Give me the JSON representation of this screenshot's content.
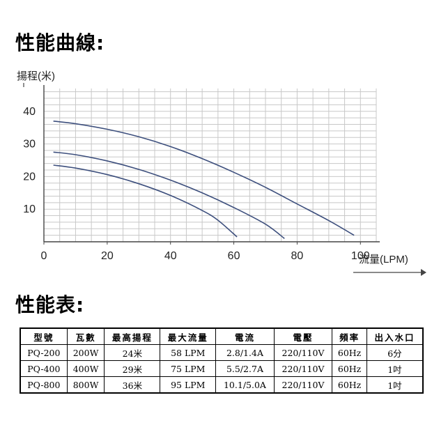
{
  "headings": {
    "curve": "性能曲線:",
    "table": "性能表:"
  },
  "chart_data": {
    "type": "line",
    "xlabel": "流量(LPM)",
    "ylabel": "揚程(米)",
    "xlim": [
      0,
      105
    ],
    "ylim": [
      0,
      47
    ],
    "x_ticks": [
      "0",
      "20",
      "40",
      "60",
      "80",
      "100"
    ],
    "y_ticks": [
      "10",
      "20",
      "30",
      "40"
    ],
    "grid": true,
    "line_color": "#3d4f7d",
    "series": [
      {
        "x": [
          3,
          10,
          20,
          30,
          40,
          50,
          60,
          70,
          80,
          90,
          98
        ],
        "values": [
          37,
          36.2,
          34.5,
          32.2,
          29.2,
          25.5,
          21.3,
          16.7,
          11.6,
          6.5,
          2
        ]
      },
      {
        "x": [
          3,
          10,
          20,
          30,
          40,
          50,
          60,
          70,
          76
        ],
        "values": [
          27.5,
          26.7,
          24.8,
          22.2,
          18.9,
          15,
          10.5,
          5.4,
          1
        ]
      },
      {
        "x": [
          3,
          10,
          20,
          30,
          40,
          50,
          55,
          61
        ],
        "values": [
          23.5,
          22.6,
          20.6,
          17.8,
          14.2,
          9.6,
          6.6,
          1.5
        ]
      }
    ]
  },
  "spec_table": {
    "headers": [
      "型號",
      "瓦數",
      "最高揚程",
      "最大流量",
      "電流",
      "電壓",
      "頻率",
      "出入水口"
    ],
    "rows": [
      [
        "PQ-200",
        "200W",
        "24米",
        "58 LPM",
        "2.8/1.4A",
        "220/110V",
        "60Hz",
        "6分"
      ],
      [
        "PQ-400",
        "400W",
        "29米",
        "75 LPM",
        "5.5/2.7A",
        "220/110V",
        "60Hz",
        "1吋"
      ],
      [
        "PQ-800",
        "800W",
        "36米",
        "95 LPM",
        "10.1/5.0A",
        "220/110V",
        "60Hz",
        "1吋"
      ]
    ]
  }
}
